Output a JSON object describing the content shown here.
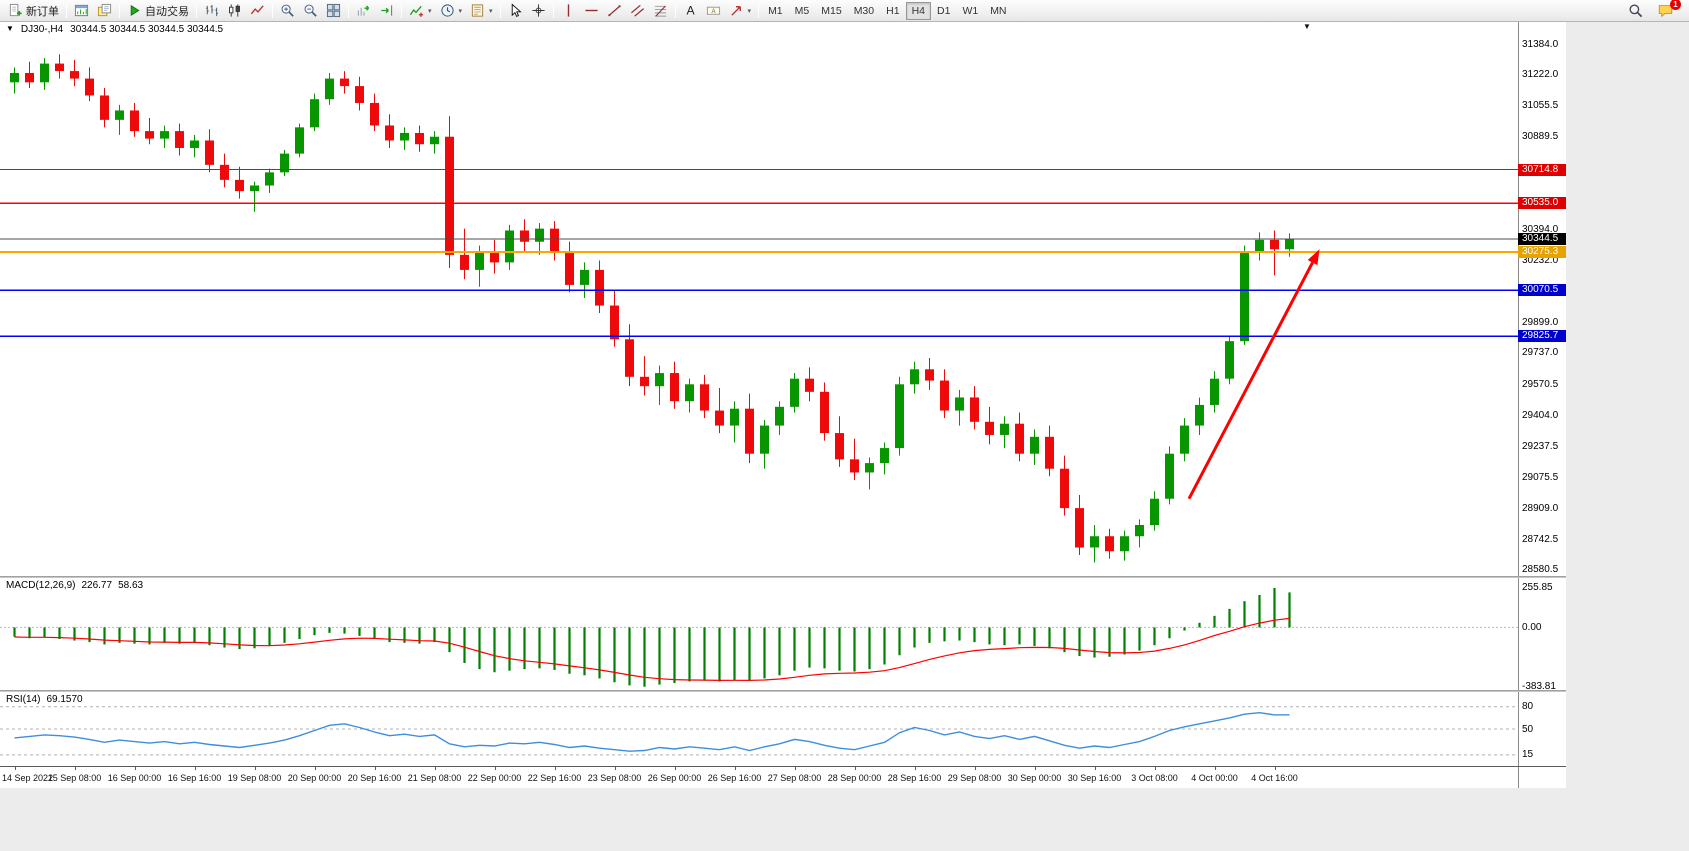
{
  "toolbar": {
    "groups": [
      {
        "items": [
          {
            "name": "new-order-button",
            "icon": "doc-plus",
            "label": "新订单"
          }
        ]
      },
      {
        "items": [
          {
            "name": "charts-button",
            "icon": "chart-window"
          },
          {
            "name": "profiles-button",
            "icon": "profiles"
          }
        ]
      },
      {
        "items": [
          {
            "name": "auto-trading-button",
            "icon": "play",
            "label": "自动交易"
          }
        ]
      },
      {
        "items": [
          {
            "name": "bar-chart-button",
            "icon": "bars"
          },
          {
            "name": "candlestick-button",
            "icon": "candles"
          },
          {
            "name": "line-chart-button",
            "icon": "linechart"
          }
        ]
      },
      {
        "items": [
          {
            "name": "zoom-in-button",
            "icon": "zoom-in"
          },
          {
            "name": "zoom-out-button",
            "icon": "zoom-out"
          },
          {
            "name": "tile-windows-button",
            "icon": "tile"
          }
        ]
      },
      {
        "items": [
          {
            "name": "auto-scroll-button",
            "icon": "autoscroll"
          },
          {
            "name": "chart-shift-button",
            "icon": "chartshift"
          }
        ]
      },
      {
        "items": [
          {
            "name": "indicators-button",
            "icon": "indicators",
            "dropdown": true
          },
          {
            "name": "periods-button",
            "icon": "clock",
            "dropdown": true
          },
          {
            "name": "templates-button",
            "icon": "template",
            "dropdown": true
          }
        ]
      },
      {
        "items": [
          {
            "name": "cursor-button",
            "icon": "cursor"
          },
          {
            "name": "crosshair-button",
            "icon": "crosshair"
          }
        ]
      },
      {
        "items": [
          {
            "name": "vertical-line-button",
            "icon": "vline"
          },
          {
            "name": "horizontal-line-button",
            "icon": "hline"
          },
          {
            "name": "trendline-button",
            "icon": "trend"
          },
          {
            "name": "channel-button",
            "icon": "channel"
          },
          {
            "name": "fibonacci-button",
            "icon": "fibo"
          }
        ]
      },
      {
        "items": [
          {
            "name": "text-button",
            "icon": "text"
          },
          {
            "name": "text-label-button",
            "icon": "label"
          },
          {
            "name": "arrows-tool-button",
            "icon": "arrows",
            "dropdown": true
          }
        ]
      }
    ],
    "timeframes": {
      "label_names": [
        "M1",
        "M5",
        "M15",
        "M30",
        "H1",
        "H4",
        "D1",
        "W1",
        "MN"
      ],
      "active": "H4"
    },
    "right_items": [
      {
        "name": "search-button",
        "icon": "search"
      },
      {
        "name": "notifications-button",
        "icon": "chat",
        "badge": "1"
      }
    ]
  },
  "chart": {
    "title": "DJ30-,H4",
    "ohlc": "30344.5 30344.5 30344.5 30344.5",
    "price_range": {
      "max": 31427,
      "min": 28548
    },
    "colors": {
      "bull": "#089600",
      "bear": "#ee0a0a",
      "bid_line": "#4d4d4d",
      "arrow": "#ff0000"
    },
    "axis_labels": [
      31384.0,
      31222.0,
      31055.5,
      30889.5,
      30394.0,
      30232.0,
      29899.0,
      29737.0,
      29570.5,
      29404.0,
      29237.5,
      29075.5,
      28909.0,
      28742.5,
      28580.5
    ],
    "levels": [
      {
        "name": "resistance-line-1",
        "price": 30714.8,
        "color": "#ff0000",
        "tag_bg": "#dd0000",
        "width": 1.2
      },
      {
        "name": "resistance-line-2",
        "price": 30535.0,
        "color": "#ff0000",
        "tag_bg": "#dd0000",
        "width": 1.2
      },
      {
        "name": "pivot-line",
        "price": 30275.3,
        "color": "#ffa500",
        "tag_bg": "#e8a200",
        "width": 2
      },
      {
        "name": "support-line-1",
        "price": 30070.5,
        "color": "#0000ff",
        "tag_bg": "#0000cc",
        "width": 1.6
      },
      {
        "name": "support-line-2",
        "price": 29825.7,
        "color": "#0000ff",
        "tag_bg": "#0000cc",
        "width": 1.6
      }
    ],
    "bid": {
      "price": 30344.5,
      "tag_bg": "#000000"
    },
    "candles": [
      [
        31180,
        31260,
        31120,
        31230
      ],
      [
        31230,
        31290,
        31150,
        31180
      ],
      [
        31180,
        31310,
        31140,
        31280
      ],
      [
        31280,
        31330,
        31200,
        31240
      ],
      [
        31240,
        31300,
        31160,
        31200
      ],
      [
        31200,
        31260,
        31080,
        31110
      ],
      [
        31110,
        31150,
        30940,
        30980
      ],
      [
        30980,
        31060,
        30900,
        31030
      ],
      [
        31030,
        31070,
        30890,
        30920
      ],
      [
        30920,
        30990,
        30850,
        30880
      ],
      [
        30880,
        30950,
        30830,
        30920
      ],
      [
        30920,
        30960,
        30790,
        30830
      ],
      [
        30830,
        30900,
        30780,
        30870
      ],
      [
        30870,
        30930,
        30700,
        30740
      ],
      [
        30740,
        30800,
        30620,
        30660
      ],
      [
        30660,
        30730,
        30560,
        30600
      ],
      [
        30600,
        30650,
        30490,
        30630
      ],
      [
        30630,
        30720,
        30590,
        30700
      ],
      [
        30700,
        30820,
        30680,
        30800
      ],
      [
        30800,
        30960,
        30780,
        30940
      ],
      [
        30940,
        31120,
        30920,
        31090
      ],
      [
        31090,
        31230,
        31060,
        31200
      ],
      [
        31200,
        31240,
        31120,
        31160
      ],
      [
        31160,
        31210,
        31030,
        31070
      ],
      [
        31070,
        31120,
        30920,
        30950
      ],
      [
        30950,
        31010,
        30830,
        30870
      ],
      [
        30870,
        30940,
        30820,
        30910
      ],
      [
        30910,
        30950,
        30810,
        30850
      ],
      [
        30850,
        30920,
        30800,
        30890
      ],
      [
        30890,
        31000,
        30190,
        30260
      ],
      [
        30260,
        30400,
        30130,
        30180
      ],
      [
        30180,
        30310,
        30090,
        30280
      ],
      [
        30280,
        30340,
        30160,
        30220
      ],
      [
        30220,
        30420,
        30180,
        30390
      ],
      [
        30390,
        30450,
        30280,
        30330
      ],
      [
        30330,
        30430,
        30260,
        30400
      ],
      [
        30400,
        30440,
        30230,
        30270
      ],
      [
        30270,
        30330,
        30060,
        30100
      ],
      [
        30100,
        30220,
        30030,
        30180
      ],
      [
        30180,
        30230,
        29950,
        29990
      ],
      [
        29990,
        30070,
        29770,
        29810
      ],
      [
        29810,
        29890,
        29560,
        29610
      ],
      [
        29610,
        29720,
        29510,
        29560
      ],
      [
        29560,
        29670,
        29460,
        29630
      ],
      [
        29630,
        29690,
        29440,
        29480
      ],
      [
        29480,
        29600,
        29420,
        29570
      ],
      [
        29570,
        29620,
        29390,
        29430
      ],
      [
        29430,
        29550,
        29310,
        29350
      ],
      [
        29350,
        29480,
        29260,
        29440
      ],
      [
        29440,
        29520,
        29150,
        29200
      ],
      [
        29200,
        29380,
        29120,
        29350
      ],
      [
        29350,
        29480,
        29300,
        29450
      ],
      [
        29450,
        29630,
        29420,
        29600
      ],
      [
        29600,
        29660,
        29480,
        29530
      ],
      [
        29530,
        29580,
        29270,
        29310
      ],
      [
        29310,
        29400,
        29130,
        29170
      ],
      [
        29170,
        29280,
        29060,
        29100
      ],
      [
        29100,
        29180,
        29010,
        29150
      ],
      [
        29150,
        29260,
        29090,
        29230
      ],
      [
        29230,
        29610,
        29190,
        29570
      ],
      [
        29570,
        29690,
        29520,
        29650
      ],
      [
        29650,
        29710,
        29540,
        29590
      ],
      [
        29590,
        29650,
        29390,
        29430
      ],
      [
        29430,
        29540,
        29350,
        29500
      ],
      [
        29500,
        29560,
        29330,
        29370
      ],
      [
        29370,
        29450,
        29250,
        29300
      ],
      [
        29300,
        29400,
        29230,
        29360
      ],
      [
        29360,
        29420,
        29160,
        29200
      ],
      [
        29200,
        29330,
        29140,
        29290
      ],
      [
        29290,
        29350,
        29080,
        29120
      ],
      [
        29120,
        29190,
        28870,
        28910
      ],
      [
        28910,
        28980,
        28660,
        28700
      ],
      [
        28700,
        28820,
        28620,
        28760
      ],
      [
        28760,
        28800,
        28640,
        28680
      ],
      [
        28680,
        28790,
        28630,
        28760
      ],
      [
        28760,
        28850,
        28700,
        28820
      ],
      [
        28820,
        29000,
        28790,
        28960
      ],
      [
        28960,
        29240,
        28930,
        29200
      ],
      [
        29200,
        29390,
        29160,
        29350
      ],
      [
        29350,
        29500,
        29300,
        29460
      ],
      [
        29460,
        29640,
        29420,
        29600
      ],
      [
        29600,
        29830,
        29570,
        29800
      ],
      [
        29800,
        30310,
        29780,
        30280
      ],
      [
        30280,
        30380,
        30230,
        30340
      ],
      [
        30340,
        30390,
        30150,
        30290
      ],
      [
        30290,
        30375,
        30250,
        30344.5
      ]
    ],
    "arrow": {
      "from": {
        "index": 78.3,
        "price": 28960
      },
      "to": {
        "index": 87.0,
        "price": 30290
      }
    },
    "time_labels": [
      "14 Sep 2022",
      "15 Sep 08:00",
      "16 Sep 00:00",
      "16 Sep 16:00",
      "19 Sep 08:00",
      "20 Sep 00:00",
      "20 Sep 16:00",
      "21 Sep 08:00",
      "22 Sep 00:00",
      "22 Sep 16:00",
      "23 Sep 08:00",
      "26 Sep 00:00",
      "26 Sep 16:00",
      "27 Sep 08:00",
      "28 Sep 00:00",
      "28 Sep 16:00",
      "29 Sep 08:00",
      "30 Sep 00:00",
      "30 Sep 16:00",
      "3 Oct 08:00",
      "4 Oct 00:00",
      "4 Oct 16:00"
    ],
    "label_step": 4
  },
  "macd": {
    "title": "MACD(12,26,9)",
    "value_main": "226.77",
    "value_signal": "58.63",
    "scale": {
      "max": 320,
      "min": -405
    },
    "axis": [
      {
        "v": 255.85,
        "text": "255.85"
      },
      {
        "v": 0,
        "text": "0.00"
      },
      {
        "v": -383.81,
        "text": "-383.81"
      }
    ],
    "colors": {
      "hist": "#008000",
      "signal": "#ff0000"
    },
    "hist": [
      -60,
      -70,
      -65,
      -75,
      -85,
      -95,
      -110,
      -100,
      -105,
      -110,
      -100,
      -105,
      -95,
      -115,
      -130,
      -140,
      -135,
      -120,
      -100,
      -75,
      -50,
      -35,
      -40,
      -55,
      -75,
      -95,
      -100,
      -105,
      -95,
      -160,
      -230,
      -270,
      -290,
      -280,
      -270,
      -265,
      -275,
      -300,
      -310,
      -330,
      -355,
      -375,
      -383.81,
      -370,
      -360,
      -350,
      -345,
      -350,
      -340,
      -345,
      -330,
      -310,
      -280,
      -260,
      -265,
      -280,
      -285,
      -270,
      -240,
      -180,
      -130,
      -100,
      -90,
      -85,
      -95,
      -110,
      -115,
      -110,
      -120,
      -135,
      -160,
      -185,
      -195,
      -190,
      -175,
      -150,
      -115,
      -70,
      -20,
      30,
      75,
      120,
      170,
      210,
      255.85,
      226.77
    ],
    "signal": [
      -62,
      -64,
      -64,
      -66,
      -70,
      -75,
      -82,
      -86,
      -90,
      -94,
      -95,
      -97,
      -97,
      -100,
      -106,
      -113,
      -117,
      -118,
      -114,
      -106,
      -95,
      -83,
      -74,
      -70,
      -71,
      -76,
      -81,
      -86,
      -88,
      -102,
      -128,
      -156,
      -183,
      -202,
      -216,
      -226,
      -236,
      -249,
      -261,
      -275,
      -291,
      -308,
      -323,
      -332,
      -338,
      -340,
      -341,
      -343,
      -342,
      -343,
      -340,
      -334,
      -323,
      -310,
      -301,
      -297,
      -295,
      -290,
      -280,
      -260,
      -234,
      -207,
      -184,
      -164,
      -150,
      -142,
      -137,
      -131,
      -129,
      -130,
      -136,
      -146,
      -156,
      -163,
      -165,
      -162,
      -153,
      -136,
      -113,
      -84,
      -52,
      -25,
      5,
      28,
      47,
      58.63
    ]
  },
  "rsi": {
    "title": "RSI(14)",
    "value": "69.1570",
    "scale": {
      "max": 100,
      "min": 0
    },
    "levels": [
      80,
      50,
      15
    ],
    "color": "#3E8EDE",
    "values": [
      38,
      40,
      42,
      41,
      39,
      36,
      32,
      35,
      33,
      31,
      33,
      30,
      32,
      29,
      27,
      25,
      28,
      31,
      35,
      41,
      48,
      55,
      57,
      52,
      46,
      41,
      43,
      40,
      42,
      30,
      26,
      28,
      27,
      31,
      30,
      32,
      29,
      25,
      27,
      24,
      22,
      20,
      21,
      25,
      23,
      26,
      24,
      22,
      26,
      21,
      26,
      30,
      36,
      33,
      28,
      24,
      22,
      27,
      32,
      45,
      52,
      48,
      42,
      46,
      40,
      37,
      41,
      36,
      40,
      34,
      28,
      24,
      27,
      25,
      29,
      33,
      40,
      48,
      53,
      57,
      61,
      65,
      70,
      72,
      69,
      69.157
    ]
  }
}
